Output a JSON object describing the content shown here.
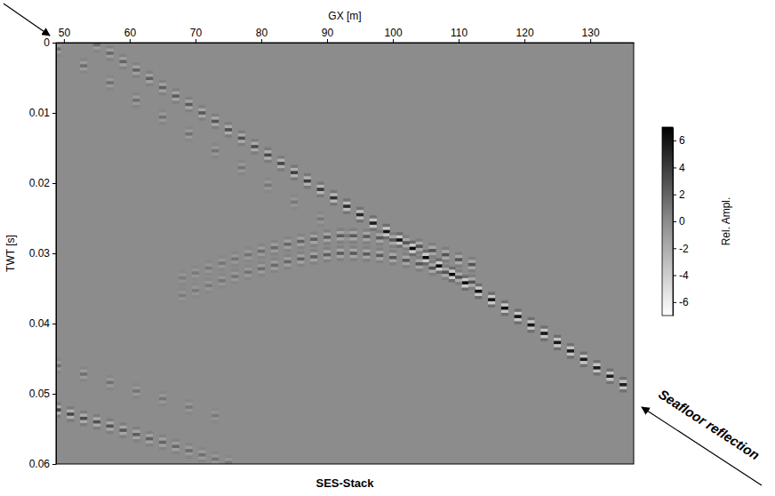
{
  "chart_data": {
    "type": "seismic",
    "title": "SES-Stack",
    "x_label": "GX [m]",
    "y_label": "TWT [s]",
    "xlim": [
      48.8,
      136.6
    ],
    "xticks": [
      50,
      60,
      70,
      80,
      90,
      100,
      110,
      120,
      130
    ],
    "ylim": [
      0,
      0.06
    ],
    "yticks": [
      0,
      0.01,
      0.02,
      0.03,
      0.04,
      0.05,
      0.06
    ],
    "colorbar": {
      "label": "Rel. Ampl.",
      "range": [
        -7,
        7
      ],
      "ticks": [
        -6,
        -4,
        -2,
        0,
        2,
        4,
        6
      ]
    },
    "annotations": [
      {
        "text": "Seafloor reflection"
      }
    ],
    "series": [
      {
        "x": [
          55,
          57,
          59,
          61,
          63,
          65,
          67,
          69,
          71,
          73,
          75,
          77,
          79,
          81,
          83,
          85,
          87,
          89,
          91,
          93,
          95,
          97,
          99,
          101,
          103,
          105,
          107,
          109,
          111,
          113,
          115,
          117,
          119,
          121,
          123,
          125,
          127,
          129,
          131,
          133,
          135
        ],
        "values": [
          0.0003,
          0.0015,
          0.0027,
          0.0039,
          0.0051,
          0.0064,
          0.0076,
          0.0088,
          0.01,
          0.0112,
          0.0124,
          0.0136,
          0.0148,
          0.016,
          0.0172,
          0.0185,
          0.0197,
          0.0209,
          0.0221,
          0.0233,
          0.0245,
          0.0257,
          0.0269,
          0.0281,
          0.0293,
          0.0306,
          0.0318,
          0.033,
          0.0342,
          0.0354,
          0.0366,
          0.0378,
          0.039,
          0.0402,
          0.0414,
          0.0427,
          0.0439,
          0.0451,
          0.0463,
          0.0475,
          0.0487
        ],
        "amplitude": [
          1.5,
          1.8,
          2.0,
          2.0,
          2.2,
          2.2,
          2.4,
          2.5,
          2.6,
          2.8,
          3.0,
          3.0,
          3.2,
          3.4,
          3.5,
          3.8,
          4.0,
          4.2,
          4.5,
          4.8,
          5.0,
          5.5,
          6.0,
          6.2,
          6.5,
          6.5,
          6.5,
          6.5,
          6.3,
          6.2,
          6.0,
          6.0,
          6.0,
          5.8,
          5.8,
          5.8,
          5.6,
          5.6,
          5.5,
          5.5,
          5.5
        ]
      },
      {
        "x": [
          49,
          53,
          57,
          61,
          65,
          69,
          73,
          77,
          81,
          85,
          89,
          93
        ],
        "values": [
          0.0009,
          0.0033,
          0.0057,
          0.0082,
          0.0106,
          0.013,
          0.0154,
          0.0178,
          0.0203,
          0.0227,
          0.0251,
          0.0275
        ],
        "amplitude": [
          1.5,
          1.5,
          1.4,
          1.4,
          1.3,
          1.3,
          1.2,
          1.2,
          1.1,
          1.0,
          1.0,
          0.9
        ]
      },
      {
        "x": [
          68,
          70,
          72,
          74,
          76,
          78,
          80,
          82,
          84,
          86,
          88,
          90,
          92,
          94,
          96,
          98,
          100,
          102,
          104,
          106,
          108,
          110,
          112
        ],
        "values": [
          0.0335,
          0.0328,
          0.0321,
          0.0314,
          0.0308,
          0.0302,
          0.0297,
          0.0292,
          0.0287,
          0.0283,
          0.028,
          0.0277,
          0.0275,
          0.0275,
          0.0276,
          0.0278,
          0.0281,
          0.0285,
          0.029,
          0.0296,
          0.0302,
          0.0309,
          0.0316
        ],
        "amplitude": [
          0.8,
          0.9,
          1.0,
          1.1,
          1.2,
          1.3,
          1.5,
          1.7,
          1.9,
          2.1,
          2.3,
          2.4,
          2.5,
          2.5,
          2.5,
          2.5,
          2.6,
          2.6,
          2.7,
          2.8,
          2.8,
          2.8,
          2.8
        ]
      },
      {
        "x": [
          68,
          70,
          72,
          74,
          76,
          78,
          80,
          82,
          84,
          86,
          88,
          90,
          92,
          94,
          96,
          98,
          100,
          102,
          104,
          106,
          108,
          110,
          112
        ],
        "values": [
          0.036,
          0.0353,
          0.0346,
          0.0339,
          0.0333,
          0.0327,
          0.0322,
          0.0317,
          0.0312,
          0.0308,
          0.0305,
          0.0302,
          0.03,
          0.03,
          0.0301,
          0.0303,
          0.0306,
          0.031,
          0.0315,
          0.0321,
          0.0327,
          0.0334,
          0.0341
        ],
        "amplitude": [
          0.8,
          0.9,
          1.0,
          1.1,
          1.2,
          1.3,
          1.5,
          1.7,
          1.9,
          2.1,
          2.3,
          2.4,
          2.5,
          2.5,
          2.5,
          2.5,
          2.6,
          2.6,
          2.7,
          2.8,
          2.8,
          2.8,
          2.8
        ]
      },
      {
        "x": [
          49,
          51,
          53,
          55,
          57,
          59,
          61,
          63,
          65,
          67,
          69,
          71,
          73,
          75
        ],
        "values": [
          0.0523,
          0.0529,
          0.0535,
          0.054,
          0.0546,
          0.0552,
          0.0558,
          0.0564,
          0.0569,
          0.0575,
          0.0581,
          0.0587,
          0.0593,
          0.0598
        ],
        "amplitude": [
          3.5,
          3.4,
          3.2,
          3.0,
          2.8,
          2.6,
          2.4,
          2.2,
          2.0,
          1.8,
          1.6,
          1.4,
          1.2,
          1.0
        ]
      },
      {
        "x": [
          49,
          53,
          57,
          61,
          65,
          69,
          73
        ],
        "values": [
          0.046,
          0.0472,
          0.0484,
          0.0496,
          0.0507,
          0.0519,
          0.0531
        ],
        "amplitude": [
          1.5,
          1.4,
          1.3,
          1.2,
          1.1,
          1.0,
          0.9
        ]
      }
    ]
  }
}
